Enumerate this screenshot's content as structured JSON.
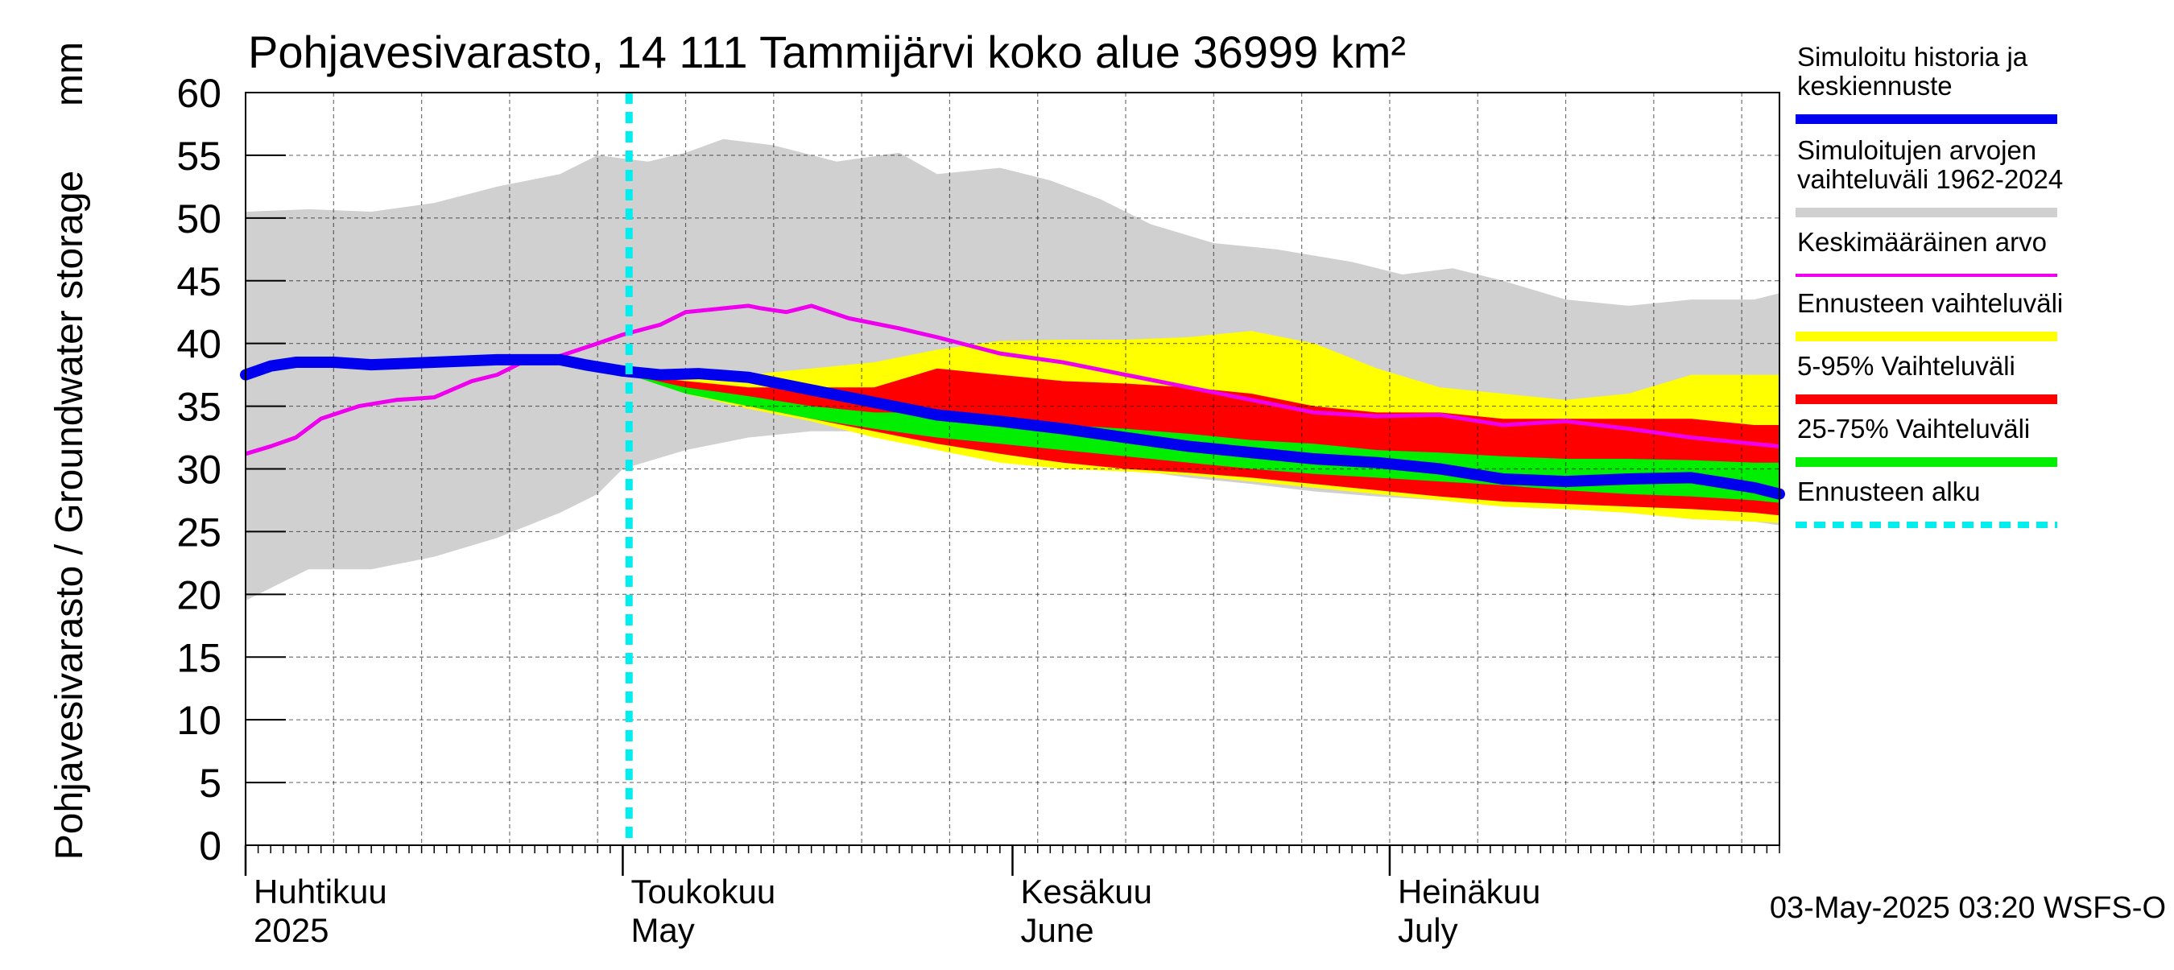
{
  "chart_data": {
    "type": "area",
    "title": "Pohjavesivarasto, 14 111 Tammijärvi koko alue 36999 km²",
    "ylabel": "Pohjavesivarasto / Groundwater storage",
    "yunit": "mm",
    "xlabel": "",
    "ylim": [
      0,
      60
    ],
    "yticks": [
      0,
      5,
      10,
      15,
      20,
      25,
      30,
      35,
      40,
      45,
      50,
      55,
      60
    ],
    "xlim_days": [
      0,
      122
    ],
    "forecast_start_day": 30.5,
    "month_labels": [
      {
        "fi": "Huhtikuu",
        "en": "2025",
        "day": 0
      },
      {
        "fi": "Toukokuu",
        "en": "May",
        "day": 30
      },
      {
        "fi": "Kesäkuu",
        "en": "June",
        "day": 61
      },
      {
        "fi": "Heinäkuu",
        "en": "July",
        "day": 91
      }
    ],
    "footer": "03-May-2025 03:20 WSFS-O",
    "legend": [
      {
        "label": "Simuloitu historia ja keskiennuste",
        "color": "#0000ee",
        "style": "thick"
      },
      {
        "label": "Simuloitujen arvojen vaihteluväli 1962-2024",
        "color": "#d0d0d0",
        "style": "thick"
      },
      {
        "label": "Keskimääräinen arvo",
        "color": "#ee00ee",
        "style": "thin"
      },
      {
        "label": "Ennusteen vaihteluväli",
        "color": "#ffff00",
        "style": "thick"
      },
      {
        "label": "5-95% Vaihteluväli",
        "color": "#ff0000",
        "style": "thick"
      },
      {
        "label": "25-75% Vaihteluväli",
        "color": "#00ee00",
        "style": "thick"
      },
      {
        "label": "Ennusteen alku",
        "color": "#00eeee",
        "style": "dashed"
      }
    ],
    "series": [
      {
        "name": "hist_range_max",
        "color": "#d0d0d0",
        "x": [
          0,
          5,
          10,
          15,
          20,
          25,
          28,
          32,
          35,
          38,
          42,
          47,
          52,
          55,
          60,
          64,
          68,
          72,
          77,
          82,
          88,
          92,
          96,
          100,
          105,
          110,
          115,
          120,
          122
        ],
        "y": [
          50.5,
          50.7,
          50.5,
          51.2,
          52.5,
          53.5,
          55,
          54.5,
          55.2,
          56.3,
          55.8,
          54.5,
          55.2,
          53.5,
          54,
          53,
          51.5,
          49.5,
          48,
          47.5,
          46.5,
          45.5,
          46,
          45,
          43.5,
          43,
          43.5,
          43.5,
          44
        ]
      },
      {
        "name": "hist_range_min",
        "color": "#d0d0d0",
        "x": [
          0,
          2,
          5,
          10,
          15,
          20,
          25,
          28,
          30,
          35,
          40,
          45,
          52,
          55,
          60,
          65,
          70,
          75,
          80,
          85,
          90,
          95,
          100,
          105,
          110,
          115,
          120,
          122
        ],
        "y": [
          19.5,
          20.5,
          22,
          22,
          23,
          24.5,
          26.5,
          28,
          30,
          31.5,
          32.5,
          33,
          33,
          32.2,
          31.5,
          31,
          30,
          29.3,
          28.8,
          28.2,
          27.8,
          27.5,
          27,
          26.8,
          26.5,
          26,
          25.8,
          25.5
        ]
      },
      {
        "name": "forecast_range_max",
        "color": "#ffff00",
        "x": [
          30.5,
          35,
          40,
          45,
          50,
          55,
          60,
          65,
          70,
          75,
          80,
          85,
          90,
          95,
          100,
          105,
          110,
          115,
          120,
          122
        ],
        "y": [
          37.5,
          37.5,
          37.5,
          38,
          38.5,
          39.5,
          40.2,
          40.3,
          40.3,
          40.5,
          41,
          40,
          38,
          36.5,
          36,
          35.5,
          36,
          37.5,
          37.5,
          37.5
        ]
      },
      {
        "name": "forecast_range_min",
        "color": "#ffff00",
        "x": [
          30.5,
          35,
          40,
          45,
          50,
          55,
          60,
          65,
          70,
          75,
          80,
          85,
          90,
          95,
          100,
          105,
          110,
          115,
          120,
          122
        ],
        "y": [
          37.5,
          36,
          34.8,
          33.8,
          32.5,
          31.5,
          30.5,
          30,
          29.8,
          29.5,
          29,
          28.5,
          28,
          27.5,
          27,
          26.8,
          26.5,
          26,
          25.8,
          25.7
        ]
      },
      {
        "name": "p95",
        "color": "#ff0000",
        "x": [
          30.5,
          35,
          40,
          45,
          50,
          55,
          60,
          65,
          70,
          75,
          80,
          85,
          90,
          95,
          100,
          105,
          110,
          115,
          120,
          122
        ],
        "y": [
          37.5,
          37,
          36.5,
          36.5,
          36.5,
          38,
          37.5,
          37,
          36.8,
          36.5,
          36,
          35,
          34.5,
          34.5,
          34,
          34,
          34,
          34,
          33.5,
          33.5
        ]
      },
      {
        "name": "p5",
        "color": "#ff0000",
        "x": [
          30.5,
          35,
          40,
          45,
          50,
          55,
          60,
          65,
          70,
          75,
          80,
          85,
          90,
          95,
          100,
          105,
          110,
          115,
          120,
          122
        ],
        "y": [
          37.5,
          36.2,
          35,
          34,
          33,
          32,
          31.2,
          30.5,
          30,
          29.7,
          29.3,
          28.8,
          28.3,
          27.8,
          27.4,
          27.2,
          27,
          26.8,
          26.5,
          26.3
        ]
      },
      {
        "name": "p75",
        "color": "#00ee00",
        "x": [
          30.5,
          35,
          40,
          45,
          50,
          55,
          60,
          65,
          70,
          75,
          80,
          85,
          90,
          95,
          100,
          105,
          110,
          115,
          120,
          122
        ],
        "y": [
          37.5,
          36.5,
          35.8,
          35,
          34.5,
          34.5,
          34,
          33.5,
          33.2,
          32.8,
          32.3,
          32,
          31.5,
          31.3,
          31,
          30.8,
          30.8,
          30.7,
          30.5,
          30.5
        ]
      },
      {
        "name": "p25",
        "color": "#00ee00",
        "x": [
          30.5,
          35,
          40,
          45,
          50,
          55,
          60,
          65,
          70,
          75,
          80,
          85,
          90,
          95,
          100,
          105,
          110,
          115,
          120,
          122
        ],
        "y": [
          37.5,
          36,
          35,
          34,
          33.2,
          32.5,
          32,
          31.5,
          31,
          30.5,
          30,
          29.6,
          29.3,
          29,
          28.7,
          28.3,
          28,
          27.8,
          27.5,
          27.3
        ]
      },
      {
        "name": "Simuloitu historia ja keskiennuste",
        "color": "#0000ee",
        "x": [
          0,
          2,
          4,
          7,
          10,
          15,
          20,
          25,
          27,
          30,
          33,
          36,
          40,
          45,
          50,
          55,
          60,
          65,
          70,
          75,
          80,
          85,
          90,
          95,
          100,
          105,
          110,
          115,
          120,
          122
        ],
        "y": [
          37.5,
          38.2,
          38.5,
          38.5,
          38.3,
          38.5,
          38.7,
          38.7,
          38.3,
          37.8,
          37.5,
          37.6,
          37.3,
          36.3,
          35.3,
          34.3,
          33.8,
          33.2,
          32.5,
          31.8,
          31.3,
          30.8,
          30.5,
          30,
          29.2,
          29,
          29.2,
          29.3,
          28.5,
          28
        ]
      },
      {
        "name": "Keskimääräinen arvo",
        "color": "#ee00ee",
        "x": [
          0,
          2,
          4,
          6,
          9,
          12,
          15,
          18,
          20,
          22,
          25,
          28,
          30,
          33,
          35,
          38,
          40,
          41,
          43,
          45,
          48,
          52,
          55,
          60,
          65,
          70,
          75,
          80,
          85,
          90,
          95,
          100,
          105,
          110,
          115,
          120,
          122
        ],
        "y": [
          31.2,
          31.8,
          32.5,
          34,
          35,
          35.5,
          35.7,
          37,
          37.5,
          38.5,
          39,
          40,
          40.7,
          41.5,
          42.5,
          42.8,
          43,
          42.8,
          42.5,
          43,
          42,
          41.2,
          40.5,
          39.2,
          38.5,
          37.5,
          36.5,
          35.5,
          34.5,
          34.2,
          34.3,
          33.5,
          33.8,
          33.2,
          32.5,
          32,
          31.8
        ]
      }
    ]
  }
}
